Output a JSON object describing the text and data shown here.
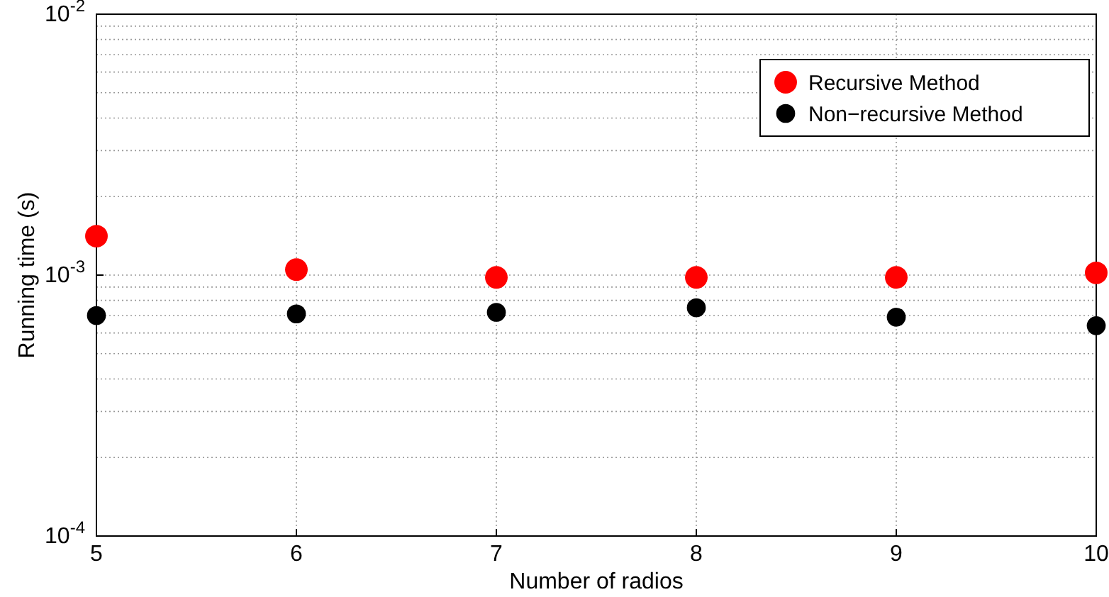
{
  "chart_data": {
    "type": "scatter",
    "xlabel": "Number of radios",
    "ylabel": "Running time (s)",
    "x": [
      5,
      6,
      7,
      8,
      9,
      10
    ],
    "series": [
      {
        "name": "Recursive Method",
        "color": "#ff0000",
        "values": [
          0.00141,
          0.00105,
          0.00098,
          0.00098,
          0.00098,
          0.00102
        ]
      },
      {
        "name": "Non−recursive Method",
        "color": "#000000",
        "values": [
          0.0007,
          0.00071,
          0.00072,
          0.00075,
          0.00069,
          0.00064
        ]
      }
    ],
    "xlim": [
      5,
      10
    ],
    "xticks": [
      5,
      6,
      7,
      8,
      9,
      10
    ],
    "ylim": [
      0.0001,
      0.01
    ],
    "yticks": [
      {
        "value": 0.0001,
        "label": "10$^{-4}$"
      },
      {
        "value": 0.001,
        "label": "10$^{-3}$"
      },
      {
        "value": 0.01,
        "label": "10$^{-2}$"
      }
    ],
    "log": "y",
    "grid": true,
    "legend": "top right",
    "marker": "circle"
  }
}
